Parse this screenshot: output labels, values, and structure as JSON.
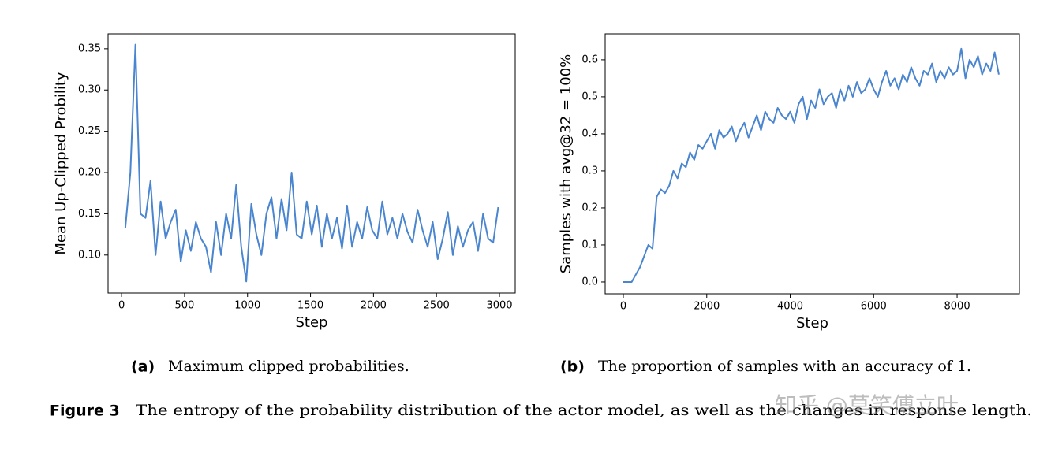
{
  "chart_data": [
    {
      "type": "line",
      "xlabel": "Step",
      "ylabel": "Mean Up-Clipped Probility",
      "color": "#4a85d0",
      "x": [
        30,
        70,
        110,
        150,
        190,
        230,
        270,
        310,
        350,
        390,
        430,
        470,
        510,
        550,
        590,
        630,
        670,
        710,
        750,
        790,
        830,
        870,
        910,
        950,
        990,
        1030,
        1070,
        1110,
        1150,
        1190,
        1230,
        1270,
        1310,
        1350,
        1390,
        1430,
        1470,
        1510,
        1550,
        1590,
        1630,
        1670,
        1710,
        1750,
        1790,
        1830,
        1870,
        1910,
        1950,
        1990,
        2030,
        2070,
        2110,
        2150,
        2190,
        2230,
        2270,
        2310,
        2350,
        2390,
        2430,
        2470,
        2510,
        2550,
        2590,
        2630,
        2670,
        2710,
        2750,
        2790,
        2830,
        2870,
        2910,
        2950,
        2990
      ],
      "values": [
        0.133,
        0.2,
        0.355,
        0.15,
        0.145,
        0.19,
        0.1,
        0.165,
        0.12,
        0.14,
        0.155,
        0.092,
        0.13,
        0.105,
        0.14,
        0.12,
        0.11,
        0.079,
        0.14,
        0.1,
        0.15,
        0.12,
        0.185,
        0.11,
        0.068,
        0.162,
        0.125,
        0.1,
        0.15,
        0.17,
        0.12,
        0.168,
        0.13,
        0.2,
        0.125,
        0.12,
        0.165,
        0.125,
        0.16,
        0.11,
        0.15,
        0.12,
        0.145,
        0.108,
        0.16,
        0.11,
        0.14,
        0.12,
        0.158,
        0.13,
        0.12,
        0.165,
        0.125,
        0.145,
        0.12,
        0.15,
        0.128,
        0.115,
        0.155,
        0.13,
        0.11,
        0.14,
        0.095,
        0.12,
        0.152,
        0.1,
        0.135,
        0.11,
        0.13,
        0.14,
        0.105,
        0.15,
        0.12,
        0.115,
        0.158
      ],
      "xlim": [
        -107,
        3125
      ],
      "ylim": [
        0.054,
        0.368
      ],
      "xticks": [
        0,
        500,
        1000,
        1500,
        2000,
        2500,
        3000
      ],
      "yticks": [
        {
          "value": 0.1,
          "label": "0.10"
        },
        0.15,
        {
          "value": 0.2,
          "label": "0.20"
        },
        0.25,
        {
          "value": 0.3,
          "label": "0.30"
        },
        0.35
      ]
    },
    {
      "type": "line",
      "xlabel": "Step",
      "ylabel": "Samples with avg@32 = 100%",
      "color": "#4a85d0",
      "x": [
        0,
        100,
        200,
        300,
        400,
        500,
        600,
        700,
        800,
        900,
        1000,
        1100,
        1200,
        1300,
        1400,
        1500,
        1600,
        1700,
        1800,
        1900,
        2000,
        2100,
        2200,
        2300,
        2400,
        2500,
        2600,
        2700,
        2800,
        2900,
        3000,
        3100,
        3200,
        3300,
        3400,
        3500,
        3600,
        3700,
        3800,
        3900,
        4000,
        4100,
        4200,
        4300,
        4400,
        4500,
        4600,
        4700,
        4800,
        4900,
        5000,
        5100,
        5200,
        5300,
        5400,
        5500,
        5600,
        5700,
        5800,
        5900,
        6000,
        6100,
        6200,
        6300,
        6400,
        6500,
        6600,
        6700,
        6800,
        6900,
        7000,
        7100,
        7200,
        7300,
        7400,
        7500,
        7600,
        7700,
        7800,
        7900,
        8000,
        8100,
        8200,
        8300,
        8400,
        8500,
        8600,
        8700,
        8800,
        8900,
        9000
      ],
      "values": [
        0,
        0,
        0,
        0.02,
        0.04,
        0.07,
        0.1,
        0.09,
        0.23,
        0.25,
        0.24,
        0.26,
        0.3,
        0.28,
        0.32,
        0.31,
        0.35,
        0.33,
        0.37,
        0.36,
        0.38,
        0.4,
        0.36,
        0.41,
        0.39,
        0.4,
        0.42,
        0.38,
        0.41,
        0.43,
        0.39,
        0.42,
        0.45,
        0.41,
        0.46,
        0.44,
        0.43,
        0.47,
        0.45,
        0.44,
        0.46,
        0.43,
        0.48,
        0.5,
        0.44,
        0.49,
        0.47,
        0.52,
        0.48,
        0.5,
        0.51,
        0.47,
        0.52,
        0.49,
        0.53,
        0.5,
        0.54,
        0.51,
        0.52,
        0.55,
        0.52,
        0.5,
        0.54,
        0.57,
        0.53,
        0.55,
        0.52,
        0.56,
        0.54,
        0.58,
        0.55,
        0.53,
        0.57,
        0.56,
        0.59,
        0.54,
        0.57,
        0.55,
        0.58,
        0.56,
        0.57,
        0.63,
        0.55,
        0.6,
        0.58,
        0.61,
        0.56,
        0.59,
        0.57,
        0.62,
        0.56
      ],
      "xlim": [
        -435,
        9493
      ],
      "ylim": [
        -0.032,
        0.67
      ],
      "xticks": [
        0,
        2000,
        4000,
        6000,
        8000
      ],
      "yticks": [
        {
          "value": 0,
          "label": "0.0"
        },
        0.1,
        0.2,
        0.3,
        0.4,
        0.5,
        0.6
      ]
    }
  ],
  "subcaptions": [
    {
      "label": "(a)",
      "text": "Maximum clipped probabilities."
    },
    {
      "label": "(b)",
      "text": "The proportion of samples with an accuracy of 1."
    }
  ],
  "caption": {
    "label": "Figure 3",
    "text": "The entropy of the probability distribution of the actor model, as well as the changes in response length."
  },
  "watermark": "知乎 @莫笑傅立叶"
}
